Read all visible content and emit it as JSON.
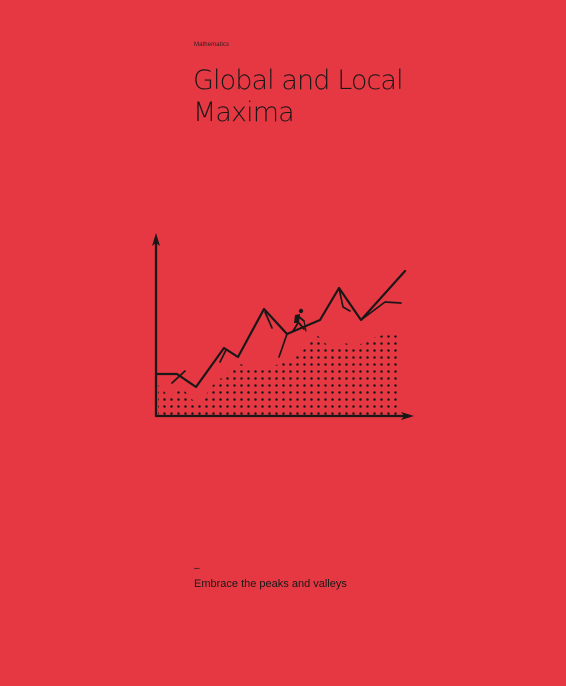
{
  "poster": {
    "category": "Mathematics",
    "title_line_1": "Global and Local",
    "title_line_2": "Maxima",
    "dash": "–",
    "tagline": "Embrace the peaks and valleys"
  },
  "colors": {
    "background": "#e63843",
    "ink": "#1b1717"
  }
}
